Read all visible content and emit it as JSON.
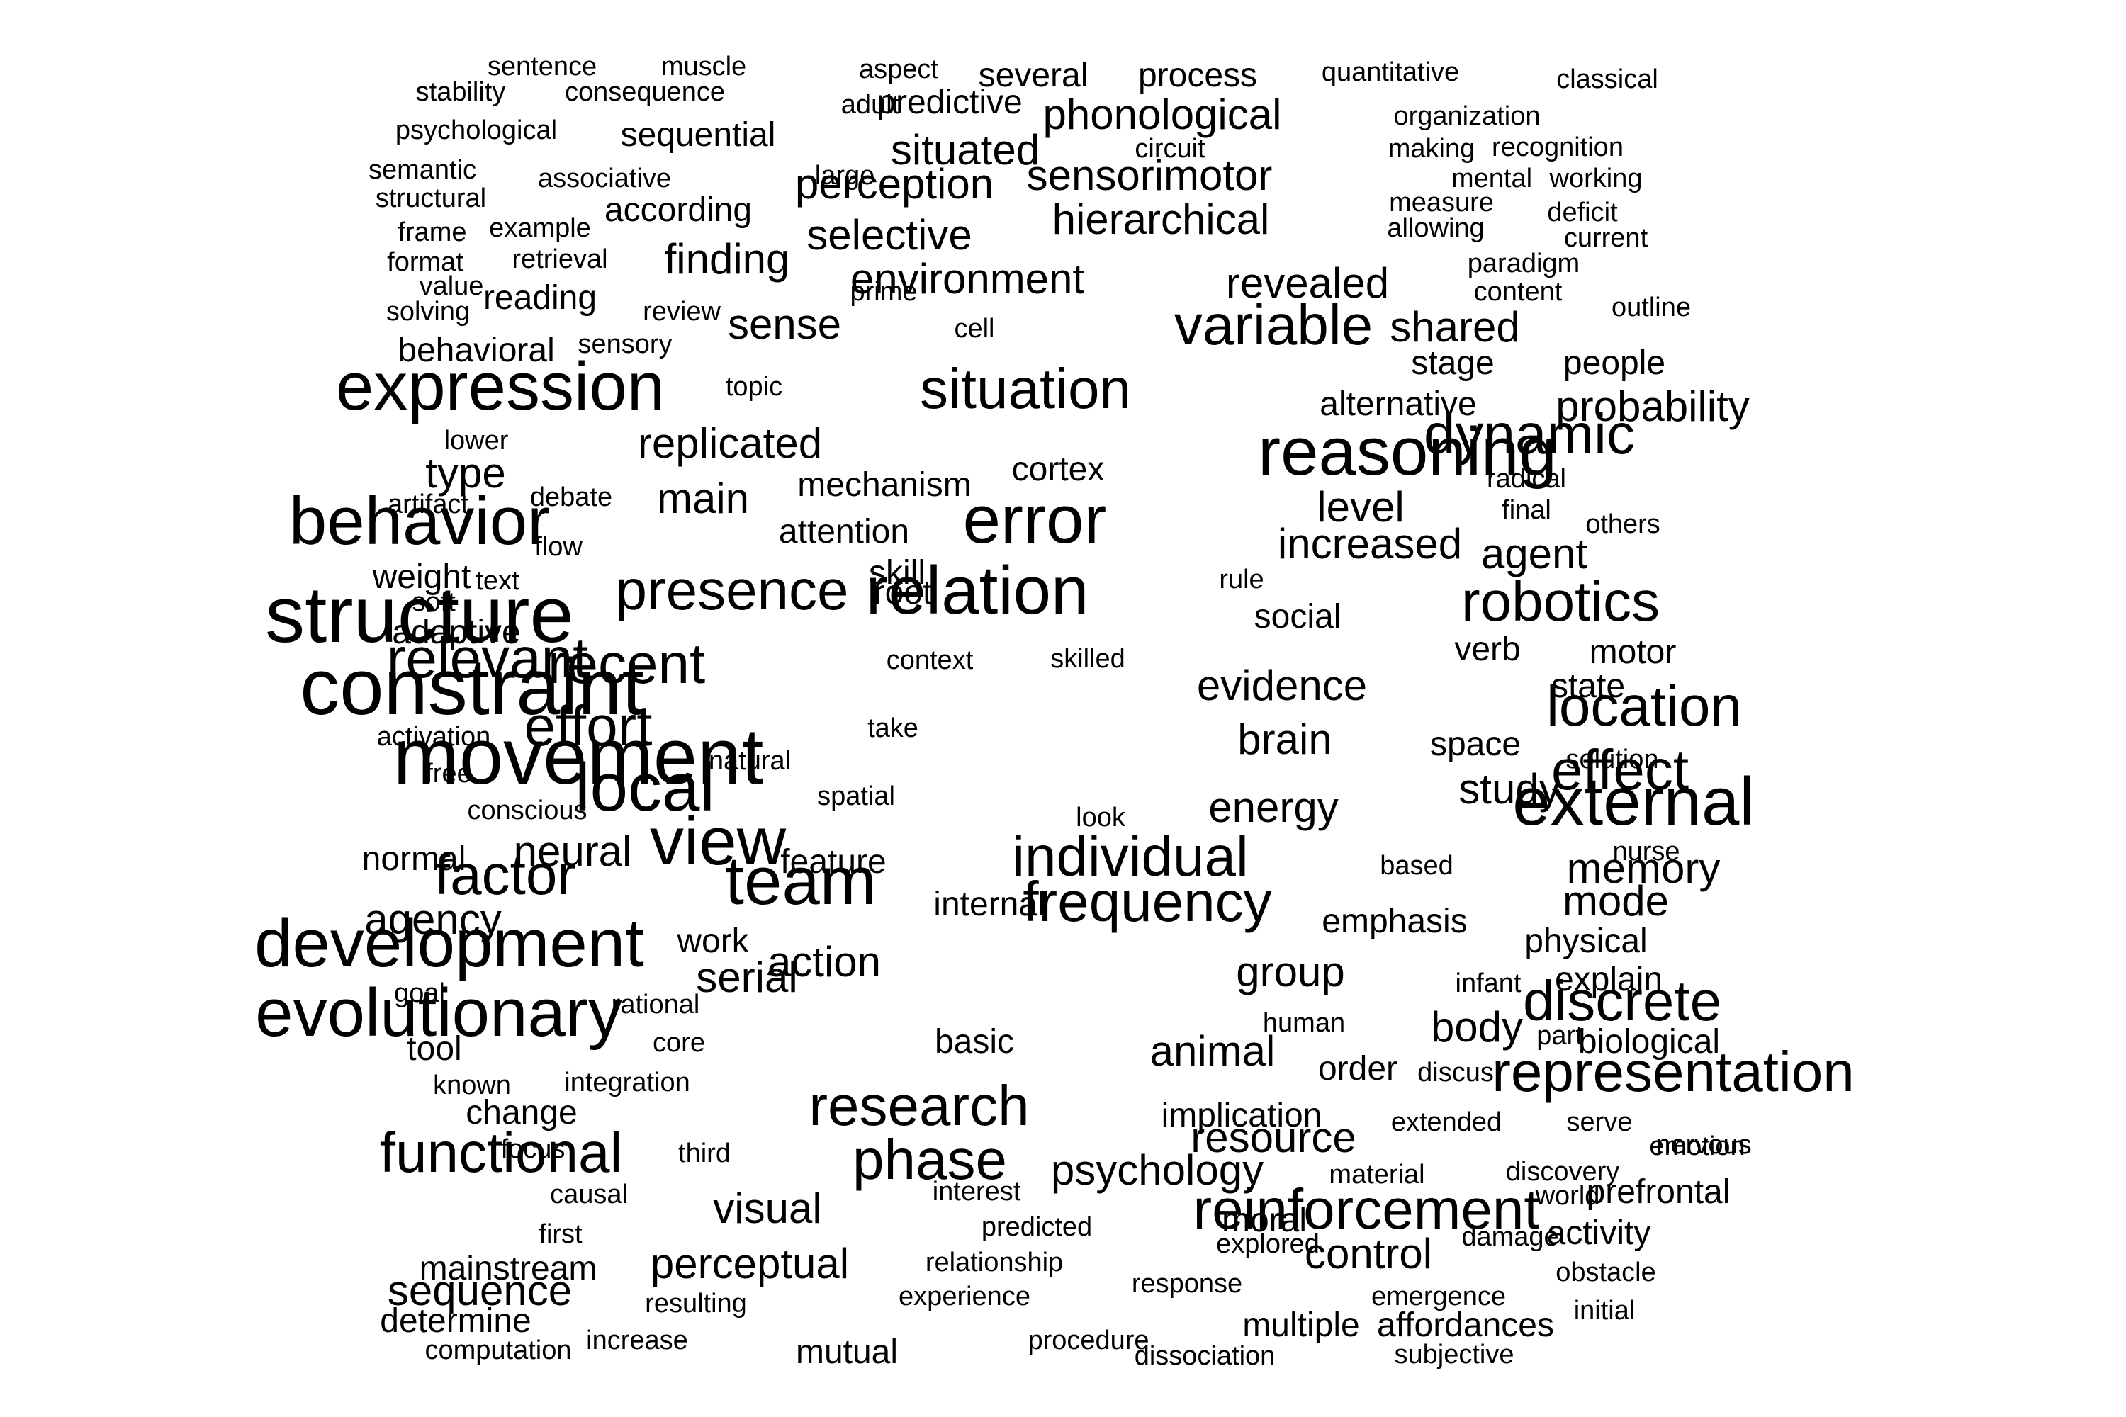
{
  "words": [
    {
      "text": "sentence",
      "size": 1
    },
    {
      "text": "muscle",
      "size": 1
    },
    {
      "text": "aspect",
      "size": 1
    },
    {
      "text": "several",
      "size": 2
    },
    {
      "text": "process",
      "size": 2
    },
    {
      "text": "quantitative",
      "size": 1
    },
    {
      "text": "classical",
      "size": 1
    },
    {
      "text": "stability",
      "size": 1
    },
    {
      "text": "consequence",
      "size": 1
    },
    {
      "text": "adult",
      "size": 1
    },
    {
      "text": "predictive",
      "size": 2
    },
    {
      "text": "phonological",
      "size": 3
    },
    {
      "text": "organization",
      "size": 1
    },
    {
      "text": "psychological",
      "size": 1
    },
    {
      "text": "sequential",
      "size": 2
    },
    {
      "text": "situated",
      "size": 3
    },
    {
      "text": "circuit",
      "size": 1
    },
    {
      "text": "making",
      "size": 1
    },
    {
      "text": "recognition",
      "size": 1
    },
    {
      "text": "semantic",
      "size": 1
    },
    {
      "text": "associative",
      "size": 1
    },
    {
      "text": "large",
      "size": 1
    },
    {
      "text": "perception",
      "size": 3
    },
    {
      "text": "sensorimotor",
      "size": 3
    },
    {
      "text": "mental",
      "size": 1
    },
    {
      "text": "working",
      "size": 1
    },
    {
      "text": "structural",
      "size": 1
    },
    {
      "text": "according",
      "size": 2
    },
    {
      "text": "measure",
      "size": 1
    },
    {
      "text": "deficit",
      "size": 1
    },
    {
      "text": "frame",
      "size": 1
    },
    {
      "text": "example",
      "size": 1
    },
    {
      "text": "selective",
      "size": 3
    },
    {
      "text": "hierarchical",
      "size": 3
    },
    {
      "text": "allowing",
      "size": 1
    },
    {
      "text": "current",
      "size": 1
    },
    {
      "text": "format",
      "size": 1
    },
    {
      "text": "retrieval",
      "size": 1
    },
    {
      "text": "finding",
      "size": 3
    },
    {
      "text": "paradigm",
      "size": 1
    },
    {
      "text": "value",
      "size": 1
    },
    {
      "text": "prime",
      "size": 1
    },
    {
      "text": "environment",
      "size": 3
    },
    {
      "text": "revealed",
      "size": 3
    },
    {
      "text": "content",
      "size": 1
    },
    {
      "text": "reading",
      "size": 2
    },
    {
      "text": "review",
      "size": 1
    },
    {
      "text": "outline",
      "size": 1
    },
    {
      "text": "solving",
      "size": 1
    },
    {
      "text": "sense",
      "size": 3
    },
    {
      "text": "cell",
      "size": 1
    },
    {
      "text": "variable",
      "size": 4
    },
    {
      "text": "shared",
      "size": 3
    },
    {
      "text": "behavioral",
      "size": 2
    },
    {
      "text": "sensory",
      "size": 1
    },
    {
      "text": "stage",
      "size": 2
    },
    {
      "text": "people",
      "size": 2
    },
    {
      "text": "topic",
      "size": 1
    },
    {
      "text": "situation",
      "size": 4
    },
    {
      "text": "expression",
      "size": 5
    },
    {
      "text": "alternative",
      "size": 2
    },
    {
      "text": "probability",
      "size": 3
    },
    {
      "text": "lower",
      "size": 1
    },
    {
      "text": "replicated",
      "size": 3
    },
    {
      "text": "dynamic",
      "size": 4
    },
    {
      "text": "cortex",
      "size": 2
    },
    {
      "text": "reasoning",
      "size": 5
    },
    {
      "text": "type",
      "size": 3
    },
    {
      "text": "radical",
      "size": 1
    },
    {
      "text": "mechanism",
      "size": 2
    },
    {
      "text": "artifact",
      "size": 1
    },
    {
      "text": "debate",
      "size": 1
    },
    {
      "text": "main",
      "size": 3
    },
    {
      "text": "level",
      "size": 3
    },
    {
      "text": "final",
      "size": 1
    },
    {
      "text": "attention",
      "size": 2
    },
    {
      "text": "error",
      "size": 5
    },
    {
      "text": "behavior",
      "size": 5
    },
    {
      "text": "others",
      "size": 1
    },
    {
      "text": "flow",
      "size": 1
    },
    {
      "text": "increased",
      "size": 3
    },
    {
      "text": "agent",
      "size": 3
    },
    {
      "text": "weight",
      "size": 2
    },
    {
      "text": "text",
      "size": 1
    },
    {
      "text": "skill",
      "size": 2
    },
    {
      "text": "rule",
      "size": 1
    },
    {
      "text": "root",
      "size": 2
    },
    {
      "text": "presence",
      "size": 4
    },
    {
      "text": "relation",
      "size": 5
    },
    {
      "text": "soft",
      "size": 1
    },
    {
      "text": "social",
      "size": 2
    },
    {
      "text": "robotics",
      "size": 4
    },
    {
      "text": "adaptive",
      "size": 2
    },
    {
      "text": "skilled",
      "size": 1
    },
    {
      "text": "structure",
      "size": 6
    },
    {
      "text": "context",
      "size": 1
    },
    {
      "text": "verb",
      "size": 2
    },
    {
      "text": "motor",
      "size": 2
    },
    {
      "text": "relevant",
      "size": 4
    },
    {
      "text": "recent",
      "size": 4
    },
    {
      "text": "evidence",
      "size": 3
    },
    {
      "text": "state",
      "size": 2
    },
    {
      "text": "constraint",
      "size": 6
    },
    {
      "text": "take",
      "size": 1
    },
    {
      "text": "location",
      "size": 4
    },
    {
      "text": "effort",
      "size": 4
    },
    {
      "text": "brain",
      "size": 3
    },
    {
      "text": "space",
      "size": 2
    },
    {
      "text": "activation",
      "size": 1
    },
    {
      "text": "natural",
      "size": 1
    },
    {
      "text": "solution",
      "size": 1
    },
    {
      "text": "free",
      "size": 1
    },
    {
      "text": "movement",
      "size": 6
    },
    {
      "text": "spatial",
      "size": 1
    },
    {
      "text": "effect",
      "size": 4
    },
    {
      "text": "local",
      "size": 5
    },
    {
      "text": "energy",
      "size": 3
    },
    {
      "text": "study",
      "size": 3
    },
    {
      "text": "conscious",
      "size": 1
    },
    {
      "text": "look",
      "size": 1
    },
    {
      "text": "external",
      "size": 5
    },
    {
      "text": "feature",
      "size": 2
    },
    {
      "text": "nurse",
      "size": 1
    },
    {
      "text": "normal",
      "size": 2
    },
    {
      "text": "neural",
      "size": 3
    },
    {
      "text": "view",
      "size": 5
    },
    {
      "text": "individual",
      "size": 4
    },
    {
      "text": "based",
      "size": 1
    },
    {
      "text": "memory",
      "size": 3
    },
    {
      "text": "factor",
      "size": 4
    },
    {
      "text": "team",
      "size": 5
    },
    {
      "text": "internal",
      "size": 2
    },
    {
      "text": "mode",
      "size": 3
    },
    {
      "text": "frequency",
      "size": 4
    },
    {
      "text": "emphasis",
      "size": 2
    },
    {
      "text": "agency",
      "size": 3
    },
    {
      "text": "work",
      "size": 2
    },
    {
      "text": "physical",
      "size": 2
    },
    {
      "text": "development",
      "size": 5
    },
    {
      "text": "action",
      "size": 3
    },
    {
      "text": "group",
      "size": 3
    },
    {
      "text": "infant",
      "size": 1
    },
    {
      "text": "explain",
      "size": 2
    },
    {
      "text": "goal",
      "size": 1
    },
    {
      "text": "serial",
      "size": 3
    },
    {
      "text": "rational",
      "size": 1
    },
    {
      "text": "discrete",
      "size": 4
    },
    {
      "text": "human",
      "size": 1
    },
    {
      "text": "evolutionary",
      "size": 5
    },
    {
      "text": "basic",
      "size": 2
    },
    {
      "text": "body",
      "size": 3
    },
    {
      "text": "core",
      "size": 1
    },
    {
      "text": "part",
      "size": 1
    },
    {
      "text": "biological",
      "size": 2
    },
    {
      "text": "tool",
      "size": 2
    },
    {
      "text": "animal",
      "size": 3
    },
    {
      "text": "order",
      "size": 2
    },
    {
      "text": "discus",
      "size": 1
    },
    {
      "text": "known",
      "size": 1
    },
    {
      "text": "integration",
      "size": 1
    },
    {
      "text": "representation",
      "size": 4
    },
    {
      "text": "research",
      "size": 4
    },
    {
      "text": "implication",
      "size": 2
    },
    {
      "text": "change",
      "size": 2
    },
    {
      "text": "extended",
      "size": 1
    },
    {
      "text": "serve",
      "size": 1
    },
    {
      "text": "focus",
      "size": 1
    },
    {
      "text": "resource",
      "size": 3
    },
    {
      "text": "emotion",
      "size": 1
    },
    {
      "text": "third",
      "size": 1
    },
    {
      "text": "nervous",
      "size": 1
    },
    {
      "text": "functional",
      "size": 4
    },
    {
      "text": "phase",
      "size": 4
    },
    {
      "text": "psychology",
      "size": 3
    },
    {
      "text": "material",
      "size": 1
    },
    {
      "text": "discovery",
      "size": 1
    },
    {
      "text": "causal",
      "size": 1
    },
    {
      "text": "interest",
      "size": 1
    },
    {
      "text": "world",
      "size": 1
    },
    {
      "text": "prefrontal",
      "size": 2
    },
    {
      "text": "visual",
      "size": 3
    },
    {
      "text": "moral",
      "size": 2
    },
    {
      "text": "reinforcement",
      "size": 4
    },
    {
      "text": "predicted",
      "size": 1
    },
    {
      "text": "first",
      "size": 1
    },
    {
      "text": "explored",
      "size": 1
    },
    {
      "text": "damage",
      "size": 1
    },
    {
      "text": "activity",
      "size": 2
    },
    {
      "text": "control",
      "size": 3
    },
    {
      "text": "relationship",
      "size": 1
    },
    {
      "text": "mainstream",
      "size": 2
    },
    {
      "text": "perceptual",
      "size": 3
    },
    {
      "text": "response",
      "size": 1
    },
    {
      "text": "obstacle",
      "size": 1
    },
    {
      "text": "sequence",
      "size": 3
    },
    {
      "text": "experience",
      "size": 1
    },
    {
      "text": "emergence",
      "size": 1
    },
    {
      "text": "resulting",
      "size": 1
    },
    {
      "text": "initial",
      "size": 1
    },
    {
      "text": "determine",
      "size": 2
    },
    {
      "text": "multiple",
      "size": 2
    },
    {
      "text": "affordances",
      "size": 2
    },
    {
      "text": "procedure",
      "size": 1
    },
    {
      "text": "increase",
      "size": 1
    },
    {
      "text": "computation",
      "size": 1
    },
    {
      "text": "mutual",
      "size": 2
    },
    {
      "text": "dissociation",
      "size": 1
    },
    {
      "text": "subjective",
      "size": 1
    }
  ]
}
